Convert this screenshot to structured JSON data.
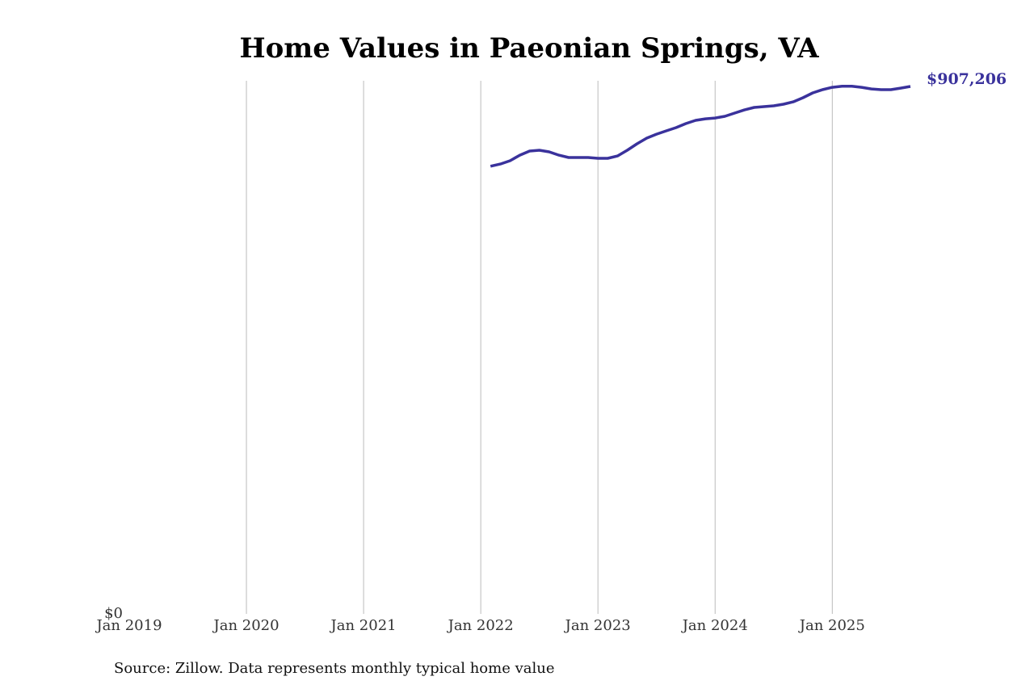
{
  "chart_data": {
    "type": "line",
    "title": "Home Values in Paeonian Springs, VA",
    "source": "Source: Zillow. Data represents monthly typical home value",
    "x": [
      "2022-02",
      "2022-03",
      "2022-04",
      "2022-05",
      "2022-06",
      "2022-07",
      "2022-08",
      "2022-09",
      "2022-10",
      "2022-11",
      "2022-12",
      "2023-01",
      "2023-02",
      "2023-03",
      "2023-04",
      "2023-05",
      "2023-06",
      "2023-07",
      "2023-08",
      "2023-09",
      "2023-10",
      "2023-11",
      "2023-12",
      "2024-01",
      "2024-02",
      "2024-03",
      "2024-04",
      "2024-05",
      "2024-06",
      "2024-07",
      "2024-08",
      "2024-09",
      "2024-10",
      "2024-11",
      "2024-12",
      "2025-01",
      "2025-02",
      "2025-03",
      "2025-04",
      "2025-05",
      "2025-06",
      "2025-07",
      "2025-08",
      "2025-09"
    ],
    "series": [
      {
        "name": "Paeonian Springs, VA",
        "color": "#3a329c",
        "values": [
          770000,
          773800,
          779400,
          789100,
          796100,
          797500,
          794700,
          789100,
          785000,
          785000,
          785000,
          783600,
          783600,
          787700,
          797500,
          808600,
          818300,
          825200,
          830800,
          836400,
          843300,
          848900,
          851600,
          853000,
          855800,
          861400,
          866900,
          871100,
          872500,
          873900,
          876700,
          880800,
          887800,
          896100,
          901700,
          905800,
          907500,
          907500,
          905800,
          903000,
          901700,
          901700,
          904400,
          907206
        ],
        "value_labels": [
          null,
          null,
          null,
          null,
          null,
          null,
          null,
          null,
          null,
          null,
          null,
          null,
          null,
          null,
          null,
          null,
          null,
          null,
          null,
          null,
          null,
          null,
          null,
          null,
          null,
          null,
          null,
          null,
          null,
          null,
          null,
          null,
          null,
          null,
          null,
          null,
          null,
          null,
          null,
          null,
          null,
          null,
          null,
          "$907,206"
        ]
      }
    ],
    "xlim": [
      "2019-01",
      "2025-09"
    ],
    "xticks": [
      {
        "value": "2019-01",
        "label": "Jan 2019"
      },
      {
        "value": "2020-01",
        "label": "Jan 2020"
      },
      {
        "value": "2021-01",
        "label": "Jan 2021"
      },
      {
        "value": "2022-01",
        "label": "Jan 2022"
      },
      {
        "value": "2023-01",
        "label": "Jan 2023"
      },
      {
        "value": "2024-01",
        "label": "Jan 2024"
      },
      {
        "value": "2025-01",
        "label": "Jan 2025"
      }
    ],
    "ylim": [
      0,
      917000
    ],
    "yticks": [
      {
        "value": 0,
        "label": "$0"
      }
    ],
    "grid": true
  }
}
